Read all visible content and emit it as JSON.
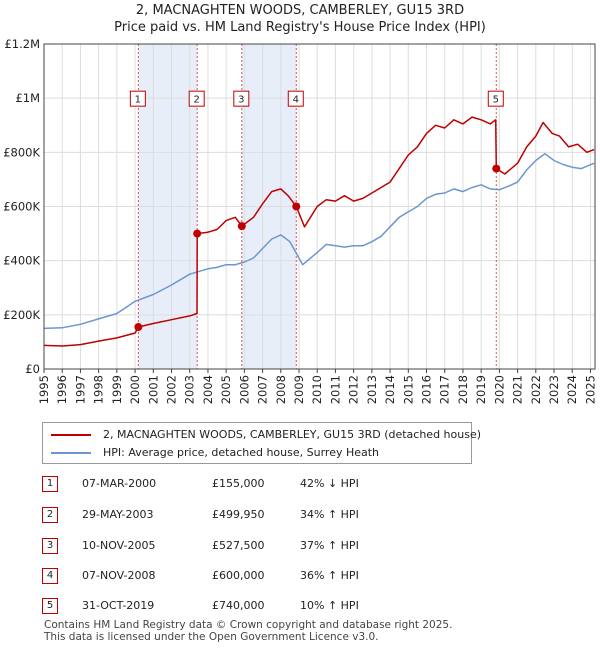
{
  "chart_data": {
    "type": "line",
    "title": "2, MACNAGHTEN WOODS, CAMBERLEY, GU15 3RD",
    "subtitle": "Price paid vs. HM Land Registry's House Price Index (HPI)",
    "ylim": [
      0,
      1200000
    ],
    "xlim": [
      1995,
      2025.25
    ],
    "y_ticks": [
      {
        "value": 0,
        "label": "£0"
      },
      {
        "value": 200000,
        "label": "£200K"
      },
      {
        "value": 400000,
        "label": "£400K"
      },
      {
        "value": 600000,
        "label": "£600K"
      },
      {
        "value": 800000,
        "label": "£800K"
      },
      {
        "value": 1000000,
        "label": "£1M"
      },
      {
        "value": 1200000,
        "label": "£1.2M"
      }
    ],
    "x_ticks": [
      "1995",
      "1996",
      "1997",
      "1998",
      "1999",
      "2000",
      "2001",
      "2002",
      "2003",
      "2004",
      "2005",
      "2006",
      "2007",
      "2008",
      "2009",
      "2010",
      "2011",
      "2012",
      "2013",
      "2014",
      "2015",
      "2016",
      "2017",
      "2018",
      "2019",
      "2020",
      "2021",
      "2022",
      "2023",
      "2024",
      "2025"
    ],
    "grid": true,
    "shaded_periods": [
      [
        2000.18,
        2003.41
      ],
      [
        2005.86,
        2008.85
      ]
    ],
    "series": [
      {
        "name": "2, MACNAGHTEN WOODS, CAMBERLEY, GU15 3RD (detached house)",
        "color": "#c00000",
        "points": [
          [
            1995.0,
            87000
          ],
          [
            1996.0,
            85000
          ],
          [
            1997.0,
            90000
          ],
          [
            1998.0,
            103000
          ],
          [
            1999.0,
            115000
          ],
          [
            2000.0,
            133000
          ],
          [
            2000.18,
            155000
          ],
          [
            2001.0,
            168000
          ],
          [
            2002.0,
            182000
          ],
          [
            2003.0,
            196000
          ],
          [
            2003.4,
            205000
          ],
          [
            2003.41,
            499950
          ],
          [
            2004.0,
            505000
          ],
          [
            2004.5,
            515000
          ],
          [
            2005.0,
            548000
          ],
          [
            2005.5,
            560000
          ],
          [
            2005.86,
            527500
          ],
          [
            2006.5,
            560000
          ],
          [
            2007.0,
            610000
          ],
          [
            2007.5,
            655000
          ],
          [
            2008.0,
            665000
          ],
          [
            2008.4,
            640000
          ],
          [
            2008.85,
            600000
          ],
          [
            2009.3,
            525000
          ],
          [
            2010.0,
            600000
          ],
          [
            2010.5,
            625000
          ],
          [
            2011.0,
            620000
          ],
          [
            2011.5,
            640000
          ],
          [
            2012.0,
            620000
          ],
          [
            2012.5,
            630000
          ],
          [
            2013.0,
            650000
          ],
          [
            2014.0,
            690000
          ],
          [
            2014.5,
            740000
          ],
          [
            2015.0,
            790000
          ],
          [
            2015.5,
            820000
          ],
          [
            2016.0,
            870000
          ],
          [
            2016.5,
            900000
          ],
          [
            2017.0,
            890000
          ],
          [
            2017.5,
            920000
          ],
          [
            2018.0,
            905000
          ],
          [
            2018.5,
            930000
          ],
          [
            2019.0,
            920000
          ],
          [
            2019.5,
            905000
          ],
          [
            2019.8,
            920000
          ],
          [
            2019.83,
            740000
          ],
          [
            2020.3,
            720000
          ],
          [
            2021.0,
            760000
          ],
          [
            2021.5,
            820000
          ],
          [
            2022.0,
            860000
          ],
          [
            2022.4,
            910000
          ],
          [
            2022.9,
            870000
          ],
          [
            2023.3,
            860000
          ],
          [
            2023.8,
            820000
          ],
          [
            2024.3,
            830000
          ],
          [
            2024.8,
            800000
          ],
          [
            2025.2,
            810000
          ]
        ]
      },
      {
        "name": "HPI: Average price, detached house, Surrey Heath",
        "color": "#6a97cf",
        "points": [
          [
            1995.0,
            150000
          ],
          [
            1996.0,
            152000
          ],
          [
            1997.0,
            165000
          ],
          [
            1998.0,
            185000
          ],
          [
            1999.0,
            205000
          ],
          [
            2000.0,
            250000
          ],
          [
            2001.0,
            275000
          ],
          [
            2002.0,
            310000
          ],
          [
            2003.0,
            350000
          ],
          [
            2004.0,
            370000
          ],
          [
            2004.5,
            375000
          ],
          [
            2005.0,
            385000
          ],
          [
            2005.5,
            385000
          ],
          [
            2006.0,
            395000
          ],
          [
            2006.5,
            410000
          ],
          [
            2007.0,
            445000
          ],
          [
            2007.5,
            480000
          ],
          [
            2008.0,
            495000
          ],
          [
            2008.5,
            470000
          ],
          [
            2009.2,
            385000
          ],
          [
            2010.0,
            430000
          ],
          [
            2010.5,
            460000
          ],
          [
            2011.0,
            455000
          ],
          [
            2011.5,
            450000
          ],
          [
            2012.0,
            455000
          ],
          [
            2012.5,
            455000
          ],
          [
            2013.0,
            470000
          ],
          [
            2013.5,
            490000
          ],
          [
            2014.0,
            525000
          ],
          [
            2014.5,
            560000
          ],
          [
            2015.0,
            580000
          ],
          [
            2015.5,
            600000
          ],
          [
            2016.0,
            630000
          ],
          [
            2016.5,
            645000
          ],
          [
            2017.0,
            650000
          ],
          [
            2017.5,
            665000
          ],
          [
            2018.0,
            655000
          ],
          [
            2018.5,
            670000
          ],
          [
            2019.0,
            680000
          ],
          [
            2019.5,
            665000
          ],
          [
            2020.0,
            662000
          ],
          [
            2020.5,
            675000
          ],
          [
            2021.0,
            690000
          ],
          [
            2021.5,
            735000
          ],
          [
            2022.0,
            770000
          ],
          [
            2022.5,
            795000
          ],
          [
            2023.0,
            770000
          ],
          [
            2023.5,
            755000
          ],
          [
            2024.0,
            745000
          ],
          [
            2024.5,
            740000
          ],
          [
            2025.2,
            760000
          ]
        ]
      }
    ],
    "sales": [
      {
        "n": "1",
        "x": 2000.18,
        "y": 155000
      },
      {
        "n": "2",
        "x": 2003.41,
        "y": 499950
      },
      {
        "n": "3",
        "x": 2005.86,
        "y": 527500
      },
      {
        "n": "4",
        "x": 2008.85,
        "y": 600000
      },
      {
        "n": "5",
        "x": 2019.83,
        "y": 740000
      }
    ],
    "marker_box_value": 1000000
  },
  "legend": {
    "property_label": "2, MACNAGHTEN WOODS, CAMBERLEY, GU15 3RD (detached house)",
    "hpi_label": "HPI: Average price, detached house, Surrey Heath"
  },
  "sales_table": [
    {
      "n": "1",
      "date": "07-MAR-2000",
      "price": "£155,000",
      "hpi": "42% ↓ HPI"
    },
    {
      "n": "2",
      "date": "29-MAY-2003",
      "price": "£499,950",
      "hpi": "34% ↑ HPI"
    },
    {
      "n": "3",
      "date": "10-NOV-2005",
      "price": "£527,500",
      "hpi": "37% ↑ HPI"
    },
    {
      "n": "4",
      "date": "07-NOV-2008",
      "price": "£600,000",
      "hpi": "36% ↑ HPI"
    },
    {
      "n": "5",
      "date": "31-OCT-2019",
      "price": "£740,000",
      "hpi": "10% ↑ HPI"
    }
  ],
  "footer": {
    "line1": "Contains HM Land Registry data © Crown copyright and database right 2025.",
    "line2": "This data is licensed under the Open Government Licence v3.0."
  }
}
